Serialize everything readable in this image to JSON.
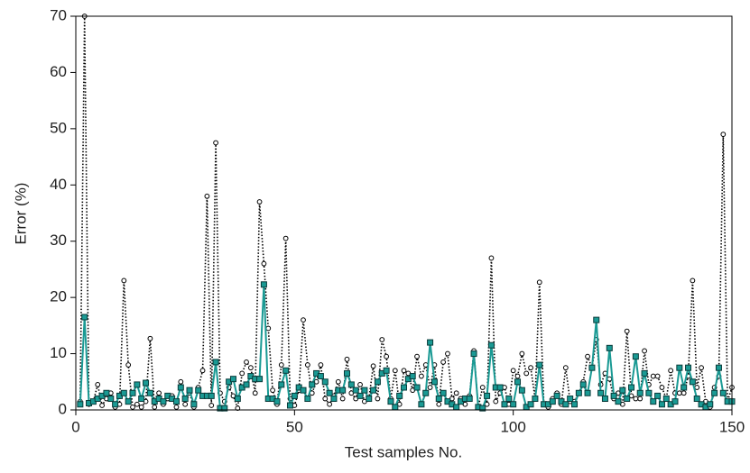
{
  "chart_data": {
    "type": "line",
    "xlabel": "Test samples No.",
    "ylabel": "Error (%)",
    "x": [
      1,
      2,
      3,
      4,
      5,
      6,
      7,
      8,
      9,
      10,
      11,
      12,
      13,
      14,
      15,
      16,
      17,
      18,
      19,
      20,
      21,
      22,
      23,
      24,
      25,
      26,
      27,
      28,
      29,
      30,
      31,
      32,
      33,
      34,
      35,
      36,
      37,
      38,
      39,
      40,
      41,
      42,
      43,
      44,
      45,
      46,
      47,
      48,
      49,
      50,
      51,
      52,
      53,
      54,
      55,
      56,
      57,
      58,
      59,
      60,
      61,
      62,
      63,
      64,
      65,
      66,
      67,
      68,
      69,
      70,
      71,
      72,
      73,
      74,
      75,
      76,
      77,
      78,
      79,
      80,
      81,
      82,
      83,
      84,
      85,
      86,
      87,
      88,
      89,
      90,
      91,
      92,
      93,
      94,
      95,
      96,
      97,
      98,
      99,
      100,
      101,
      102,
      103,
      104,
      105,
      106,
      107,
      108,
      109,
      110,
      111,
      112,
      113,
      114,
      115,
      116,
      117,
      118,
      119,
      120,
      121,
      122,
      123,
      124,
      125,
      126,
      127,
      128,
      129,
      130,
      131,
      132,
      133,
      134,
      135,
      136,
      137,
      138,
      139,
      140,
      141,
      142,
      143,
      144,
      145,
      146,
      147,
      148,
      149,
      150
    ],
    "series": [
      {
        "color": "#000000",
        "marker": "circle",
        "dash": "dotted",
        "values": [
          1.5,
          70,
          1,
          1.5,
          4.5,
          0.8,
          2,
          3,
          0.5,
          1,
          23,
          8,
          0.5,
          1,
          0.5,
          1.5,
          12.7,
          0.5,
          3,
          1,
          2,
          2.5,
          0.5,
          5,
          1,
          3,
          0.5,
          4,
          7,
          38,
          0.8,
          47.5,
          3,
          1.5,
          4,
          2.5,
          0.3,
          6.5,
          8.5,
          7.5,
          3,
          37,
          26,
          14.5,
          3.5,
          1,
          8,
          30.5,
          2,
          0.8,
          3.5,
          16,
          8,
          3,
          5,
          8,
          2,
          1,
          2.5,
          5,
          2,
          9,
          3,
          2,
          4.5,
          1.5,
          2,
          7.8,
          2,
          12.5,
          9.5,
          2,
          7,
          1,
          7,
          6.5,
          3.5,
          9.5,
          6,
          8,
          4,
          8,
          1,
          8.5,
          10,
          2,
          3,
          2,
          1,
          2.5,
          10.5,
          0.5,
          4,
          1,
          27,
          1.5,
          3,
          4,
          1,
          7,
          6,
          10,
          6.5,
          7.5,
          2,
          22.7,
          1,
          0.5,
          2,
          3,
          1,
          7.5,
          1.5,
          1.5,
          3,
          5,
          9.5,
          7.5,
          12.5,
          4.5,
          6.5,
          5.5,
          2,
          3,
          1,
          14,
          2.5,
          2,
          2,
          10.5,
          4.5,
          6,
          6,
          4,
          2,
          7,
          3,
          3,
          3,
          6,
          23,
          4,
          7.5,
          1.5,
          0.5,
          4,
          6,
          49,
          1.5,
          4
        ]
      },
      {
        "color": "#1a9a94",
        "marker": "square",
        "dash": "solid",
        "values": [
          1,
          16.5,
          1.2,
          1.5,
          2,
          2.5,
          3,
          2,
          1,
          2.5,
          3,
          1.5,
          3,
          4.5,
          2,
          4.8,
          3,
          1.5,
          2,
          1.5,
          2.5,
          2,
          1.5,
          4,
          2,
          3.5,
          1,
          3.5,
          2.5,
          2.5,
          2.5,
          8.5,
          0.3,
          0.3,
          5,
          5.5,
          2,
          4,
          4.5,
          6,
          5.5,
          5.5,
          22.3,
          2,
          2,
          1.5,
          4.5,
          7,
          0.8,
          2.5,
          4,
          3.5,
          2,
          4.5,
          6.5,
          6,
          5,
          3,
          2,
          3.5,
          3.5,
          6.5,
          4.5,
          3.5,
          2.5,
          3.5,
          2,
          3.5,
          5,
          6.5,
          7,
          1.5,
          0.5,
          2.5,
          4,
          5.5,
          6,
          4,
          1,
          3,
          12,
          5,
          2,
          3,
          1.5,
          1,
          0.5,
          1.5,
          2,
          2,
          10,
          0.5,
          0.3,
          2.5,
          11.5,
          4,
          4,
          1,
          2,
          1,
          5,
          3.5,
          0.5,
          1,
          2,
          8,
          1,
          1,
          1.5,
          2.5,
          1.5,
          1,
          2,
          1,
          3,
          4.5,
          3,
          7.5,
          16,
          3,
          2,
          11,
          2.5,
          1.5,
          3.5,
          2,
          4,
          9.5,
          3,
          6.5,
          3,
          1.5,
          2.5,
          1,
          2,
          1,
          1.5,
          7.5,
          4,
          7.5,
          5,
          2,
          1,
          0.5,
          1,
          3,
          7.5,
          3,
          1.5,
          1.5
        ]
      }
    ],
    "xlim": [
      0,
      150
    ],
    "xticks": [
      0,
      50,
      100,
      150
    ],
    "ylim": [
      0,
      70
    ],
    "yticks": [
      0,
      10,
      20,
      30,
      40,
      50,
      60,
      70
    ]
  }
}
